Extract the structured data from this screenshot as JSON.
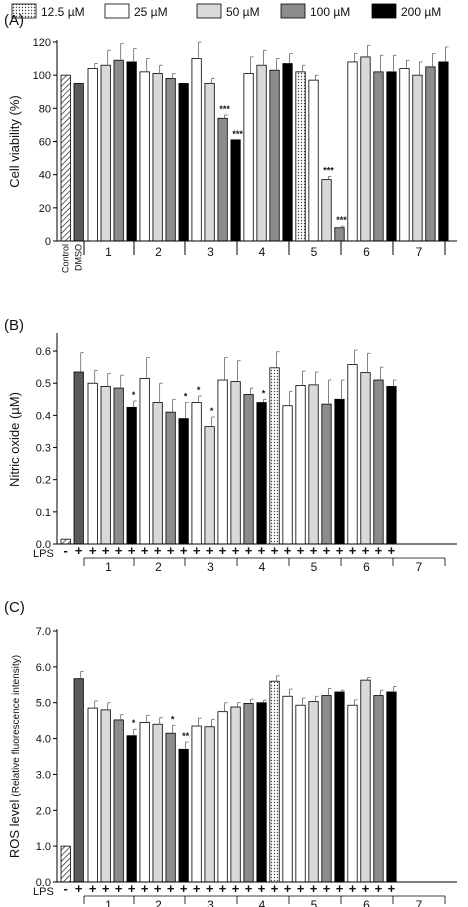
{
  "legend": [
    {
      "label": "12.5 µM",
      "fill": "dots"
    },
    {
      "label": "25 µM",
      "fill": "#ffffff"
    },
    {
      "label": "50 µM",
      "fill": "#d9d9d9"
    },
    {
      "label": "100 µM",
      "fill": "#8c8c8c"
    },
    {
      "label": "200 µM",
      "fill": "#000000"
    }
  ],
  "chart_data": [
    {
      "type": "bar",
      "panel": "(A)",
      "ylabel": "Cell viability (%)",
      "ylim": [
        0,
        120
      ],
      "yticks": [
        0,
        20,
        40,
        60,
        80,
        100,
        120
      ],
      "group_labels": [
        "1",
        "2",
        "3",
        "4",
        "5",
        "6",
        "7"
      ],
      "control_labels": [
        "Control",
        "DMSO"
      ],
      "bars": [
        {
          "group": "Control",
          "fill": "hatch",
          "value": 100,
          "err": 0,
          "sig": ""
        },
        {
          "group": "DMSO",
          "fill": "#595959",
          "value": 95,
          "err": 0,
          "sig": ""
        },
        {
          "group": "1",
          "fill": "#ffffff",
          "value": 104,
          "err": 3,
          "sig": ""
        },
        {
          "group": "1",
          "fill": "#d9d9d9",
          "value": 106,
          "err": 9,
          "sig": ""
        },
        {
          "group": "1",
          "fill": "#8c8c8c",
          "value": 109,
          "err": 10,
          "sig": ""
        },
        {
          "group": "1",
          "fill": "#000000",
          "value": 108,
          "err": 8,
          "sig": ""
        },
        {
          "group": "2",
          "fill": "#ffffff",
          "value": 102,
          "err": 8,
          "sig": ""
        },
        {
          "group": "2",
          "fill": "#d9d9d9",
          "value": 101,
          "err": 5,
          "sig": ""
        },
        {
          "group": "2",
          "fill": "#8c8c8c",
          "value": 98,
          "err": 3,
          "sig": ""
        },
        {
          "group": "2",
          "fill": "#000000",
          "value": 95,
          "err": 0,
          "sig": ""
        },
        {
          "group": "3",
          "fill": "#ffffff",
          "value": 110,
          "err": 10,
          "sig": ""
        },
        {
          "group": "3",
          "fill": "#d9d9d9",
          "value": 95,
          "err": 3,
          "sig": ""
        },
        {
          "group": "3",
          "fill": "#8c8c8c",
          "value": 74,
          "err": 2,
          "sig": "***"
        },
        {
          "group": "3",
          "fill": "#000000",
          "value": 61,
          "err": 0,
          "sig": "***"
        },
        {
          "group": "4",
          "fill": "#ffffff",
          "value": 101,
          "err": 10,
          "sig": ""
        },
        {
          "group": "4",
          "fill": "#d9d9d9",
          "value": 106,
          "err": 9,
          "sig": ""
        },
        {
          "group": "4",
          "fill": "#8c8c8c",
          "value": 103,
          "err": 7,
          "sig": ""
        },
        {
          "group": "4",
          "fill": "#000000",
          "value": 107,
          "err": 6,
          "sig": ""
        },
        {
          "group": "5",
          "fill": "dots",
          "value": 102,
          "err": 4,
          "sig": ""
        },
        {
          "group": "5",
          "fill": "#ffffff",
          "value": 97,
          "err": 3,
          "sig": ""
        },
        {
          "group": "5",
          "fill": "#d9d9d9",
          "value": 37,
          "err": 2,
          "sig": "***"
        },
        {
          "group": "5",
          "fill": "#8c8c8c",
          "value": 8,
          "err": 1,
          "sig": "***"
        },
        {
          "group": "6",
          "fill": "#ffffff",
          "value": 108,
          "err": 5,
          "sig": ""
        },
        {
          "group": "6",
          "fill": "#d9d9d9",
          "value": 111,
          "err": 7,
          "sig": ""
        },
        {
          "group": "6",
          "fill": "#8c8c8c",
          "value": 102,
          "err": 10,
          "sig": ""
        },
        {
          "group": "6",
          "fill": "#000000",
          "value": 102,
          "err": 10,
          "sig": ""
        },
        {
          "group": "7",
          "fill": "#ffffff",
          "value": 104,
          "err": 5,
          "sig": ""
        },
        {
          "group": "7",
          "fill": "#d9d9d9",
          "value": 100,
          "err": 8,
          "sig": ""
        },
        {
          "group": "7",
          "fill": "#8c8c8c",
          "value": 105,
          "err": 8,
          "sig": ""
        },
        {
          "group": "7",
          "fill": "#000000",
          "value": 108,
          "err": 9,
          "sig": ""
        }
      ]
    },
    {
      "type": "bar",
      "panel": "(B)",
      "ylabel": "Nitric oxide (µM)",
      "ylim": [
        0,
        0.65
      ],
      "yticks": [
        "0.0",
        "0.1",
        "0.2",
        "0.3",
        "0.4",
        "0.5",
        "0.6"
      ],
      "row_label": "LPS",
      "lps_marks": [
        "-",
        "+"
      ],
      "group_labels": [
        "1",
        "2",
        "3",
        "4",
        "5",
        "6",
        "7"
      ],
      "bars": [
        {
          "group": "-",
          "fill": "hatch",
          "value": 0.015,
          "err": 0,
          "sig": ""
        },
        {
          "group": "+",
          "fill": "#595959",
          "value": 0.535,
          "err": 0.06,
          "sig": ""
        },
        {
          "group": "1",
          "fill": "#ffffff",
          "value": 0.5,
          "err": 0.04,
          "sig": ""
        },
        {
          "group": "1",
          "fill": "#d9d9d9",
          "value": 0.49,
          "err": 0.04,
          "sig": ""
        },
        {
          "group": "1",
          "fill": "#8c8c8c",
          "value": 0.485,
          "err": 0.04,
          "sig": ""
        },
        {
          "group": "1",
          "fill": "#000000",
          "value": 0.425,
          "err": 0.02,
          "sig": "*"
        },
        {
          "group": "2",
          "fill": "#ffffff",
          "value": 0.515,
          "err": 0.065,
          "sig": ""
        },
        {
          "group": "2",
          "fill": "#d9d9d9",
          "value": 0.44,
          "err": 0.06,
          "sig": ""
        },
        {
          "group": "2",
          "fill": "#8c8c8c",
          "value": 0.41,
          "err": 0.04,
          "sig": ""
        },
        {
          "group": "2",
          "fill": "#000000",
          "value": 0.39,
          "err": 0.05,
          "sig": "*"
        },
        {
          "group": "3",
          "fill": "#ffffff",
          "value": 0.44,
          "err": 0.02,
          "sig": "*"
        },
        {
          "group": "3",
          "fill": "#d9d9d9",
          "value": 0.365,
          "err": 0.03,
          "sig": "*"
        },
        {
          "group": "4",
          "fill": "#ffffff",
          "value": 0.51,
          "err": 0.07,
          "sig": ""
        },
        {
          "group": "4",
          "fill": "#d9d9d9",
          "value": 0.505,
          "err": 0.065,
          "sig": ""
        },
        {
          "group": "4",
          "fill": "#8c8c8c",
          "value": 0.465,
          "err": 0.02,
          "sig": ""
        },
        {
          "group": "4",
          "fill": "#000000",
          "value": 0.44,
          "err": 0.01,
          "sig": "*"
        },
        {
          "group": "5",
          "fill": "dots",
          "value": 0.548,
          "err": 0.05,
          "sig": ""
        },
        {
          "group": "5",
          "fill": "#ffffff",
          "value": 0.43,
          "err": 0.045,
          "sig": ""
        },
        {
          "group": "6",
          "fill": "#ffffff",
          "value": 0.493,
          "err": 0.045,
          "sig": ""
        },
        {
          "group": "6",
          "fill": "#d9d9d9",
          "value": 0.495,
          "err": 0.04,
          "sig": ""
        },
        {
          "group": "6",
          "fill": "#8c8c8c",
          "value": 0.435,
          "err": 0.075,
          "sig": ""
        },
        {
          "group": "6",
          "fill": "#000000",
          "value": 0.45,
          "err": 0.06,
          "sig": ""
        },
        {
          "group": "7",
          "fill": "#ffffff",
          "value": 0.558,
          "err": 0.045,
          "sig": ""
        },
        {
          "group": "7",
          "fill": "#d9d9d9",
          "value": 0.533,
          "err": 0.06,
          "sig": ""
        },
        {
          "group": "7",
          "fill": "#8c8c8c",
          "value": 0.51,
          "err": 0.04,
          "sig": ""
        },
        {
          "group": "7",
          "fill": "#000000",
          "value": 0.49,
          "err": 0.02,
          "sig": ""
        }
      ]
    },
    {
      "type": "bar",
      "panel": "(C)",
      "ylabel_main": "ROS level",
      "ylabel_sub": "(Relative fluorescence intensity)",
      "ylim": [
        0,
        7
      ],
      "yticks": [
        "0.0",
        "1.0",
        "2.0",
        "3.0",
        "4.0",
        "5.0",
        "6.0",
        "7.0"
      ],
      "row_label": "LPS",
      "lps_marks": [
        "-",
        "+"
      ],
      "group_labels": [
        "1",
        "2",
        "3",
        "4",
        "5",
        "6",
        "7"
      ],
      "bars": [
        {
          "group": "-",
          "fill": "hatch",
          "value": 1.0,
          "err": 0,
          "sig": ""
        },
        {
          "group": "+",
          "fill": "#595959",
          "value": 5.67,
          "err": 0.2,
          "sig": ""
        },
        {
          "group": "1",
          "fill": "#ffffff",
          "value": 4.85,
          "err": 0.2,
          "sig": ""
        },
        {
          "group": "1",
          "fill": "#d9d9d9",
          "value": 4.8,
          "err": 0.2,
          "sig": ""
        },
        {
          "group": "1",
          "fill": "#8c8c8c",
          "value": 4.52,
          "err": 0.15,
          "sig": ""
        },
        {
          "group": "1",
          "fill": "#000000",
          "value": 4.08,
          "err": 0.18,
          "sig": "*"
        },
        {
          "group": "2",
          "fill": "#ffffff",
          "value": 4.45,
          "err": 0.2,
          "sig": ""
        },
        {
          "group": "2",
          "fill": "#d9d9d9",
          "value": 4.4,
          "err": 0.18,
          "sig": ""
        },
        {
          "group": "2",
          "fill": "#8c8c8c",
          "value": 4.15,
          "err": 0.22,
          "sig": "*"
        },
        {
          "group": "2",
          "fill": "#000000",
          "value": 3.7,
          "err": 0.2,
          "sig": "**"
        },
        {
          "group": "3",
          "fill": "#ffffff",
          "value": 4.35,
          "err": 0.22,
          "sig": ""
        },
        {
          "group": "3",
          "fill": "#d9d9d9",
          "value": 4.33,
          "err": 0.2,
          "sig": ""
        },
        {
          "group": "4",
          "fill": "#ffffff",
          "value": 4.75,
          "err": 0.25,
          "sig": ""
        },
        {
          "group": "4",
          "fill": "#d9d9d9",
          "value": 4.88,
          "err": 0.12,
          "sig": ""
        },
        {
          "group": "4",
          "fill": "#8c8c8c",
          "value": 4.98,
          "err": 0.12,
          "sig": ""
        },
        {
          "group": "4",
          "fill": "#000000",
          "value": 5.0,
          "err": 0.07,
          "sig": ""
        },
        {
          "group": "5",
          "fill": "dots",
          "value": 5.6,
          "err": 0.15,
          "sig": ""
        },
        {
          "group": "5",
          "fill": "#ffffff",
          "value": 5.18,
          "err": 0.2,
          "sig": ""
        },
        {
          "group": "6",
          "fill": "#ffffff",
          "value": 4.93,
          "err": 0.2,
          "sig": ""
        },
        {
          "group": "6",
          "fill": "#d9d9d9",
          "value": 5.03,
          "err": 0.15,
          "sig": ""
        },
        {
          "group": "6",
          "fill": "#8c8c8c",
          "value": 5.2,
          "err": 0.2,
          "sig": ""
        },
        {
          "group": "6",
          "fill": "#000000",
          "value": 5.3,
          "err": 0.05,
          "sig": ""
        },
        {
          "group": "7",
          "fill": "#ffffff",
          "value": 4.93,
          "err": 0.15,
          "sig": ""
        },
        {
          "group": "7",
          "fill": "#d9d9d9",
          "value": 5.63,
          "err": 0.07,
          "sig": ""
        },
        {
          "group": "7",
          "fill": "#8c8c8c",
          "value": 5.2,
          "err": 0.15,
          "sig": ""
        },
        {
          "group": "7",
          "fill": "#000000",
          "value": 5.3,
          "err": 0.15,
          "sig": ""
        }
      ]
    }
  ]
}
